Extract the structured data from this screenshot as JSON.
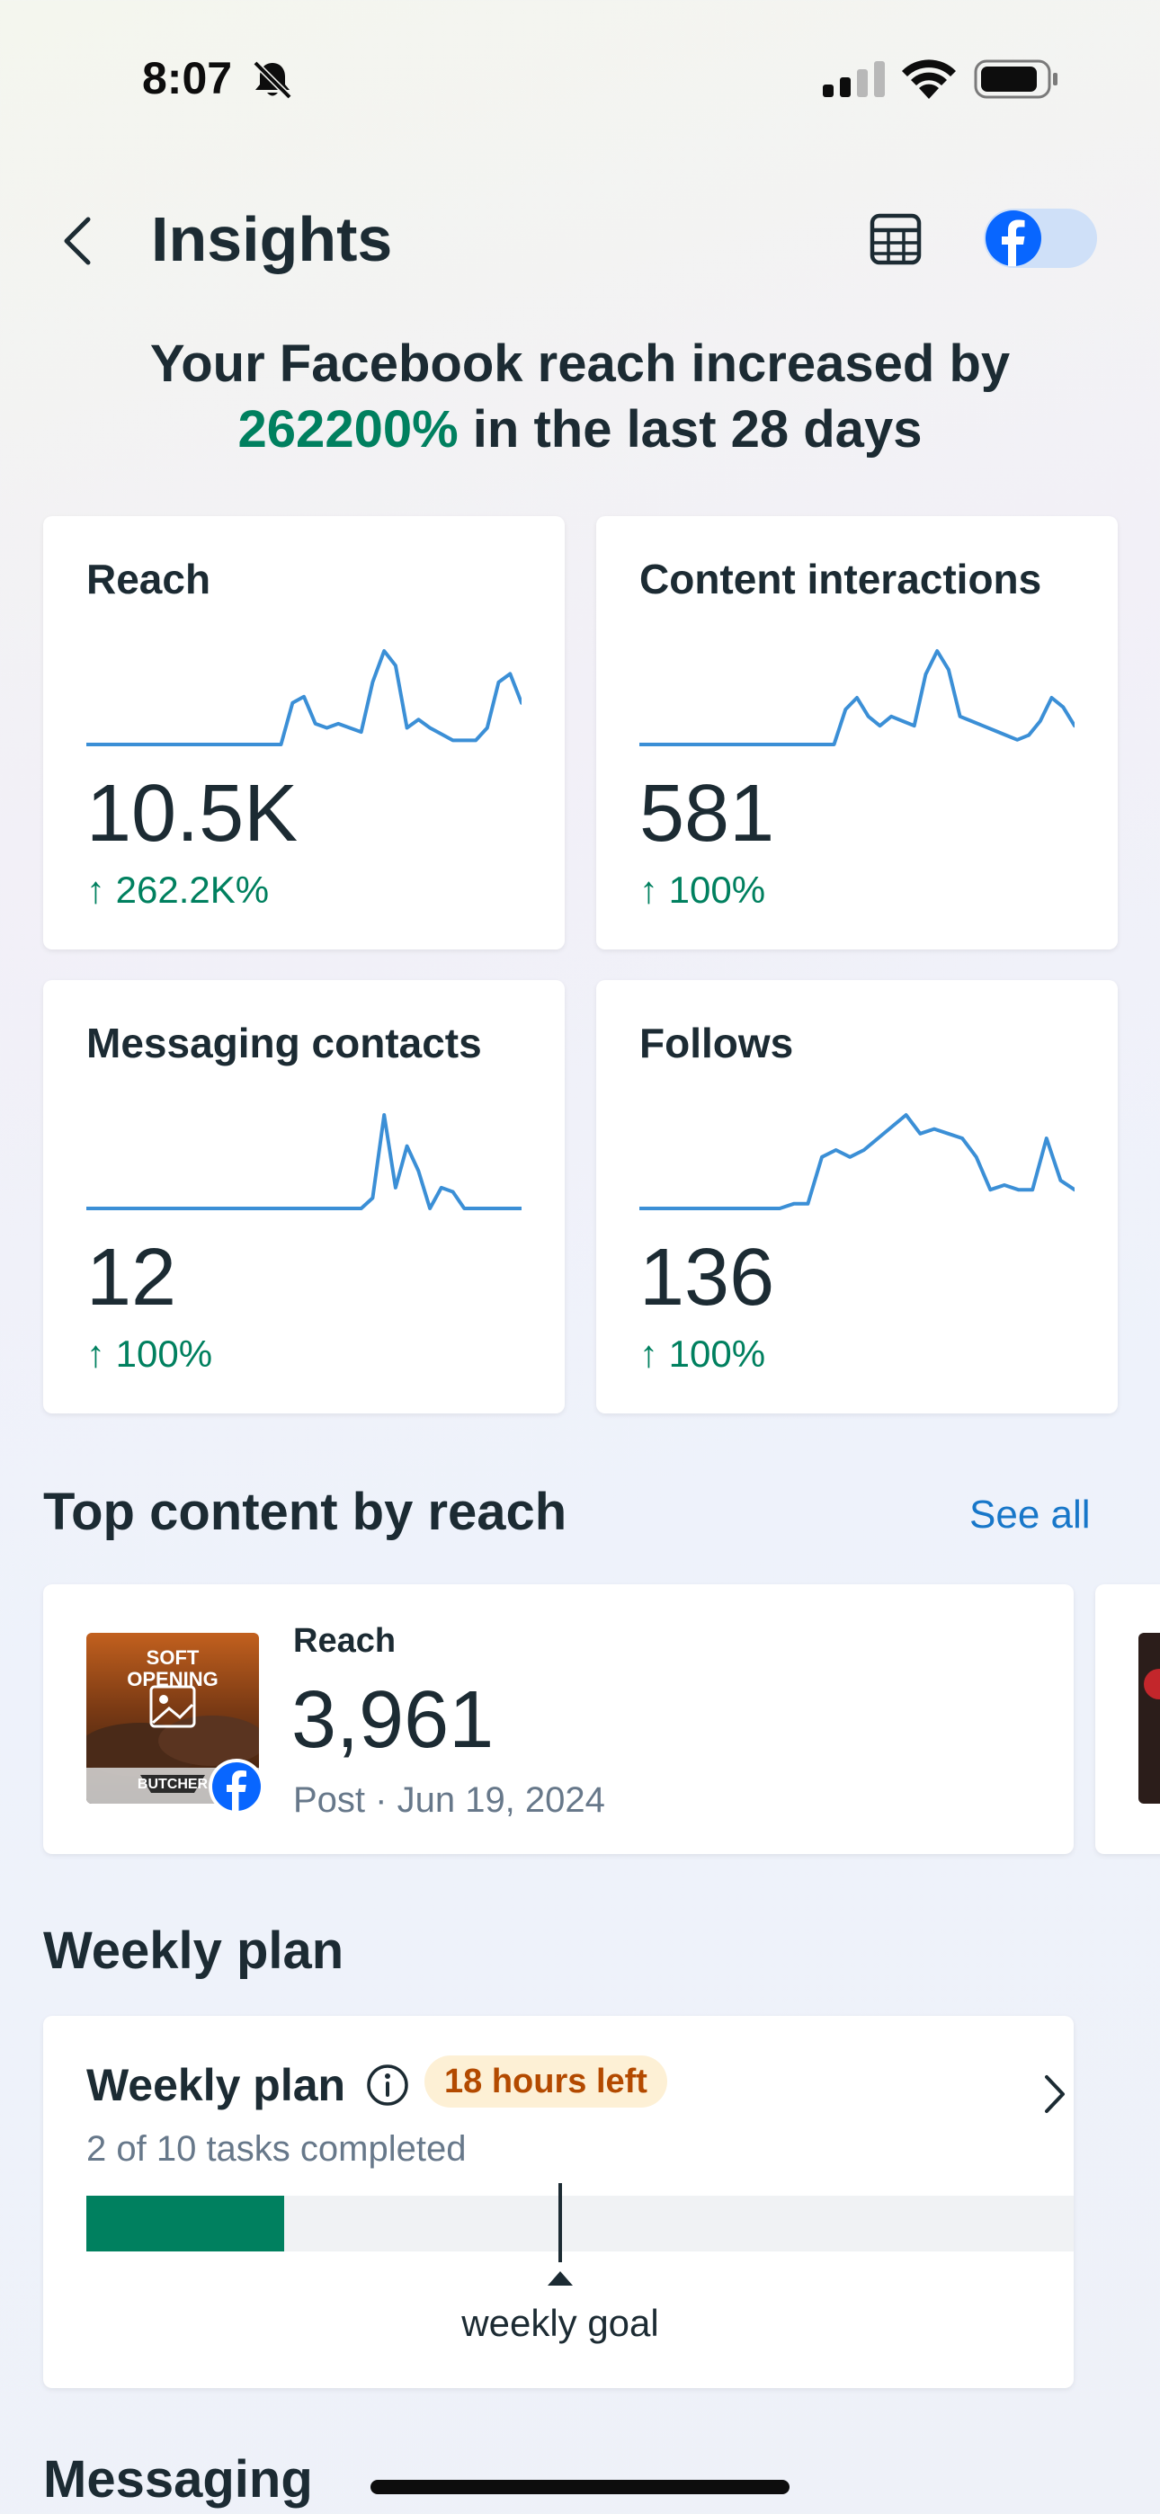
{
  "status_bar": {
    "time": "8:07"
  },
  "header": {
    "title": "Insights"
  },
  "headline": {
    "prefix": "Your Facebook reach increased by",
    "highlight": "262200%",
    "suffix": "in the last 28 days"
  },
  "metrics": [
    {
      "label": "Reach",
      "value": "10.5K",
      "change": "262.2K%",
      "trend": [
        0,
        0,
        0,
        0,
        0,
        0,
        0,
        0,
        0,
        0,
        0,
        0,
        0,
        0,
        0,
        0,
        0,
        0,
        20,
        23,
        10,
        8,
        10,
        8,
        6,
        30,
        45,
        38,
        8,
        12,
        8,
        5,
        2,
        2,
        2,
        8,
        30,
        34,
        20
      ]
    },
    {
      "label": "Content interactions",
      "value": "581",
      "change": "100%",
      "trend": [
        0,
        0,
        0,
        0,
        0,
        0,
        0,
        0,
        0,
        0,
        0,
        0,
        0,
        0,
        0,
        0,
        0,
        0,
        15,
        20,
        12,
        8,
        12,
        10,
        8,
        30,
        40,
        32,
        12,
        10,
        8,
        6,
        4,
        2,
        4,
        10,
        20,
        16,
        8
      ]
    },
    {
      "label": "Messaging contacts",
      "value": "12",
      "change": "100%",
      "trend": [
        0,
        0,
        0,
        0,
        0,
        0,
        0,
        0,
        0,
        0,
        0,
        0,
        0,
        0,
        0,
        0,
        0,
        0,
        0,
        0,
        0,
        0,
        0,
        0,
        0,
        5,
        45,
        10,
        30,
        18,
        0,
        10,
        8,
        0,
        0,
        0,
        0,
        0,
        0
      ]
    },
    {
      "label": "Follows",
      "value": "136",
      "change": "100%",
      "trend": [
        0,
        0,
        0,
        0,
        0,
        0,
        0,
        0,
        0,
        0,
        0,
        2,
        2,
        22,
        25,
        22,
        25,
        30,
        35,
        40,
        32,
        34,
        32,
        30,
        22,
        8,
        10,
        8,
        8,
        30,
        12,
        8
      ]
    }
  ],
  "top_content": {
    "title": "Top content by reach",
    "see_all": "See all",
    "items": [
      {
        "metric_label": "Reach",
        "value": "3,961",
        "meta": "Post · Jun 19, 2024",
        "thumb_text_1": "SOFT",
        "thumb_text_2": "OPENING",
        "thumb_text_3": "BUTCHER"
      }
    ]
  },
  "weekly_plan": {
    "section_title": "Weekly plan",
    "card_title": "Weekly plan",
    "badge": "18 hours left",
    "tasks": "2 of 10 tasks completed",
    "completed": 2,
    "total": 10,
    "goal_fraction": 0.5,
    "goal_label": "weekly goal"
  },
  "next_section": {
    "title": "Messaging"
  },
  "colors": {
    "accent_green": "#00805f",
    "link_blue": "#1877c9",
    "spark_blue": "#3b8fd6",
    "badge_bg": "#fdf0d5",
    "badge_text": "#b34a00"
  }
}
